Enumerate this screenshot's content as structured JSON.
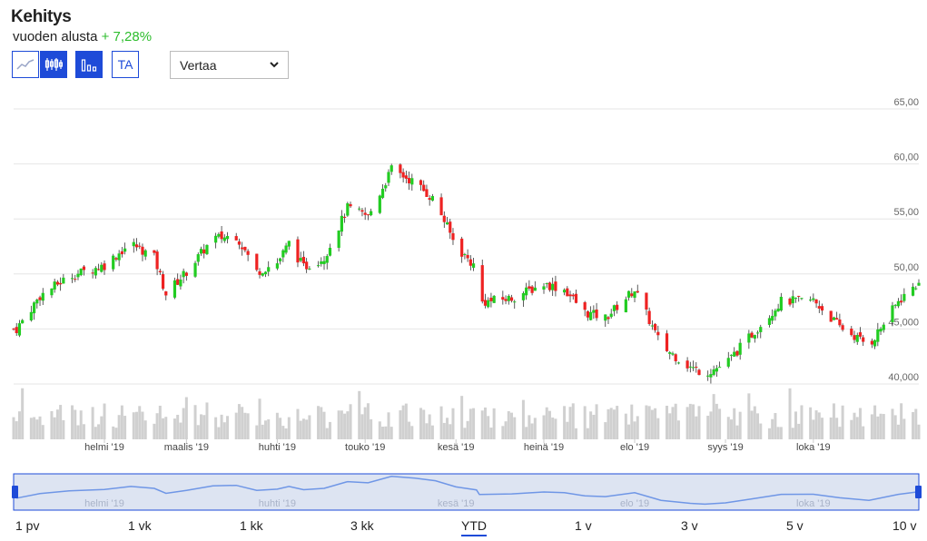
{
  "header": {
    "title": "Kehitys",
    "subtitle_label": "vuoden alusta",
    "subtitle_value": "+ 7,28%"
  },
  "toolbar": {
    "tools": [
      {
        "icon": "line-chart-icon",
        "active": false
      },
      {
        "icon": "candlestick-icon",
        "active": true
      },
      {
        "icon": "volume-bars-icon",
        "active": true
      },
      {
        "label": "TA",
        "active": false
      }
    ],
    "compare_select": {
      "value": "Vertaa",
      "icon": "chevron-down-icon"
    }
  },
  "colors": {
    "up": "#22cc22",
    "down": "#ee2222",
    "volume": "#d0d0d0",
    "grid": "#e6e6e6",
    "accent": "#1e4bd8",
    "navigator_line": "#6f96e6",
    "navigator_fill": "#dde4f2"
  },
  "chart_data": {
    "type": "candlestick",
    "y_ticks": [
      "65,00",
      "60,00",
      "55,00",
      "50,00",
      "45,000",
      "40,000"
    ],
    "ylim": [
      40,
      65
    ],
    "x_ticks": [
      "helmi '19",
      "maalis '19",
      "huhti '19",
      "touko '19",
      "kesä '19",
      "heinä '19",
      "elo '19",
      "syys '19",
      "loka '19"
    ],
    "navigator_ticks": [
      "helmi '19",
      "huhti '19",
      "kesä '19",
      "elo '19",
      "loka '19"
    ],
    "close_points": [
      {
        "x": "2019-01-02",
        "y": 45.0
      },
      {
        "x": "2019-01-10",
        "y": 48.0
      },
      {
        "x": "2019-01-20",
        "y": 49.8
      },
      {
        "x": "2019-02-01",
        "y": 50.8
      },
      {
        "x": "2019-02-10",
        "y": 52.8
      },
      {
        "x": "2019-02-18",
        "y": 51.5
      },
      {
        "x": "2019-02-22",
        "y": 48.2
      },
      {
        "x": "2019-03-01",
        "y": 50.2
      },
      {
        "x": "2019-03-10",
        "y": 53.2
      },
      {
        "x": "2019-03-18",
        "y": 53.5
      },
      {
        "x": "2019-03-25",
        "y": 50.2
      },
      {
        "x": "2019-04-01",
        "y": 51.0
      },
      {
        "x": "2019-04-05",
        "y": 52.8
      },
      {
        "x": "2019-04-10",
        "y": 50.6
      },
      {
        "x": "2019-04-17",
        "y": 51.5
      },
      {
        "x": "2019-04-25",
        "y": 56.0
      },
      {
        "x": "2019-05-02",
        "y": 55.2
      },
      {
        "x": "2019-05-10",
        "y": 59.5
      },
      {
        "x": "2019-05-18",
        "y": 58.3
      },
      {
        "x": "2019-05-25",
        "y": 56.6
      },
      {
        "x": "2019-06-01",
        "y": 52.5
      },
      {
        "x": "2019-06-08",
        "y": 50.5
      },
      {
        "x": "2019-06-09",
        "y": 47.4
      },
      {
        "x": "2019-06-20",
        "y": 47.8
      },
      {
        "x": "2019-07-01",
        "y": 49.1
      },
      {
        "x": "2019-07-08",
        "y": 48.6
      },
      {
        "x": "2019-07-15",
        "y": 46.5
      },
      {
        "x": "2019-07-22",
        "y": 46.0
      },
      {
        "x": "2019-08-01",
        "y": 48.6
      },
      {
        "x": "2019-08-10",
        "y": 43.5
      },
      {
        "x": "2019-08-20",
        "y": 41.5
      },
      {
        "x": "2019-08-25",
        "y": 41.0
      },
      {
        "x": "2019-09-01",
        "y": 41.8
      },
      {
        "x": "2019-09-10",
        "y": 44.5
      },
      {
        "x": "2019-09-20",
        "y": 47.5
      },
      {
        "x": "2019-10-01",
        "y": 47.6
      },
      {
        "x": "2019-10-10",
        "y": 45.2
      },
      {
        "x": "2019-10-20",
        "y": 43.5
      },
      {
        "x": "2019-10-30",
        "y": 47.5
      },
      {
        "x": "2019-11-05",
        "y": 49.0
      }
    ]
  },
  "periods": [
    {
      "label": "1 pv",
      "active": false
    },
    {
      "label": "1 vk",
      "active": false
    },
    {
      "label": "1 kk",
      "active": false
    },
    {
      "label": "3 kk",
      "active": false
    },
    {
      "label": "YTD",
      "active": true
    },
    {
      "label": "1 v",
      "active": false
    },
    {
      "label": "3 v",
      "active": false
    },
    {
      "label": "5 v",
      "active": false
    },
    {
      "label": "10 v",
      "active": false
    }
  ]
}
